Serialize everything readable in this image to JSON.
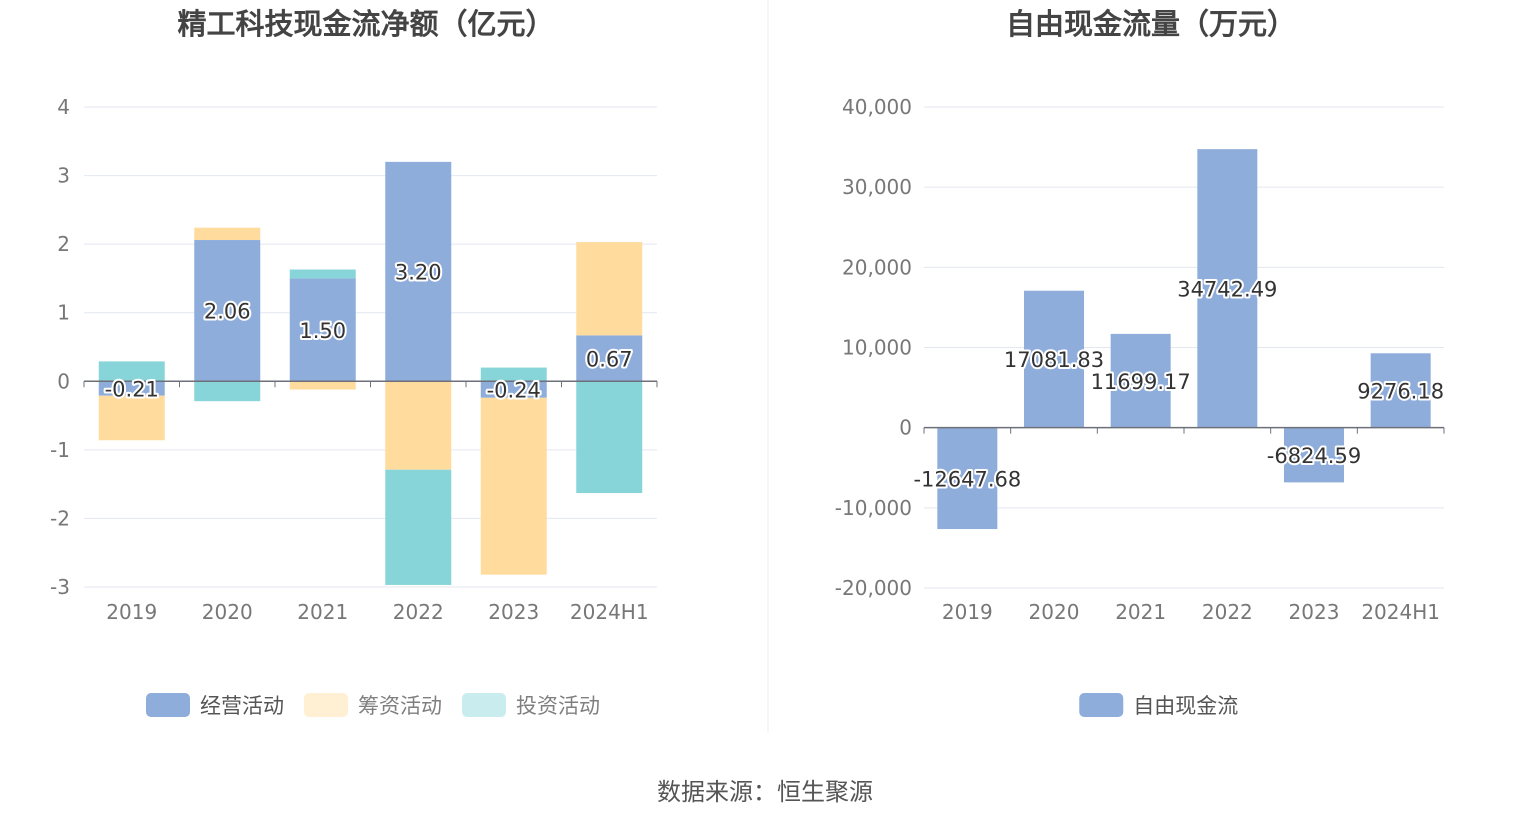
{
  "chart_data": [
    {
      "type": "bar",
      "stacked": true,
      "title": "精工科技现金流净额（亿元）",
      "categories": [
        "2019",
        "2020",
        "2021",
        "2022",
        "2023",
        "2024H1"
      ],
      "series": [
        {
          "name": "经营活动",
          "color": "#8eaddb",
          "values": [
            -0.21,
            2.06,
            1.5,
            3.2,
            -0.24,
            0.67
          ]
        },
        {
          "name": "筹资活动",
          "color": "#ffdb9e",
          "values": [
            -0.65,
            0.18,
            -0.12,
            -1.29,
            -2.58,
            1.36
          ]
        },
        {
          "name": "投资活动",
          "color": "#88d5d9",
          "values": [
            0.29,
            -0.29,
            0.13,
            -1.68,
            0.2,
            -1.63
          ]
        }
      ],
      "data_labels": [
        "-0.21",
        "2.06",
        "1.50",
        "3.20",
        "-0.24",
        "0.67"
      ],
      "ylim": [
        -3,
        4
      ],
      "yticks": [
        "4",
        "3",
        "2",
        "1",
        "0",
        "-1",
        "-2",
        "-3"
      ],
      "legend": {
        "position": "bottom",
        "items": [
          "经营活动",
          "筹资活动",
          "投资活动"
        ]
      },
      "grid": true
    },
    {
      "type": "bar",
      "title": "自由现金流量（万元）",
      "categories": [
        "2019",
        "2020",
        "2021",
        "2022",
        "2023",
        "2024H1"
      ],
      "series": [
        {
          "name": "自由现金流",
          "color": "#8eaddb",
          "values": [
            -12647.68,
            17081.83,
            11699.17,
            34742.49,
            -6824.59,
            9276.18
          ]
        }
      ],
      "data_labels": [
        "-12647.68",
        "17081.83",
        "11699.17",
        "34742.49",
        "-6824.59",
        "9276.18"
      ],
      "ylim": [
        -20000,
        40000
      ],
      "yticks": [
        "40,000",
        "30,000",
        "20,000",
        "10,000",
        "0",
        "-10,000",
        "-20,000"
      ],
      "legend": {
        "position": "bottom",
        "items": [
          "自由现金流"
        ]
      },
      "grid": true
    }
  ],
  "footer": {
    "source": "数据来源：恒生聚源"
  },
  "colors": {
    "grid": "#e3e7f0",
    "axis": "#6e7079",
    "divider": "#eeeeee",
    "legend_dim_opacity": 0.45
  }
}
